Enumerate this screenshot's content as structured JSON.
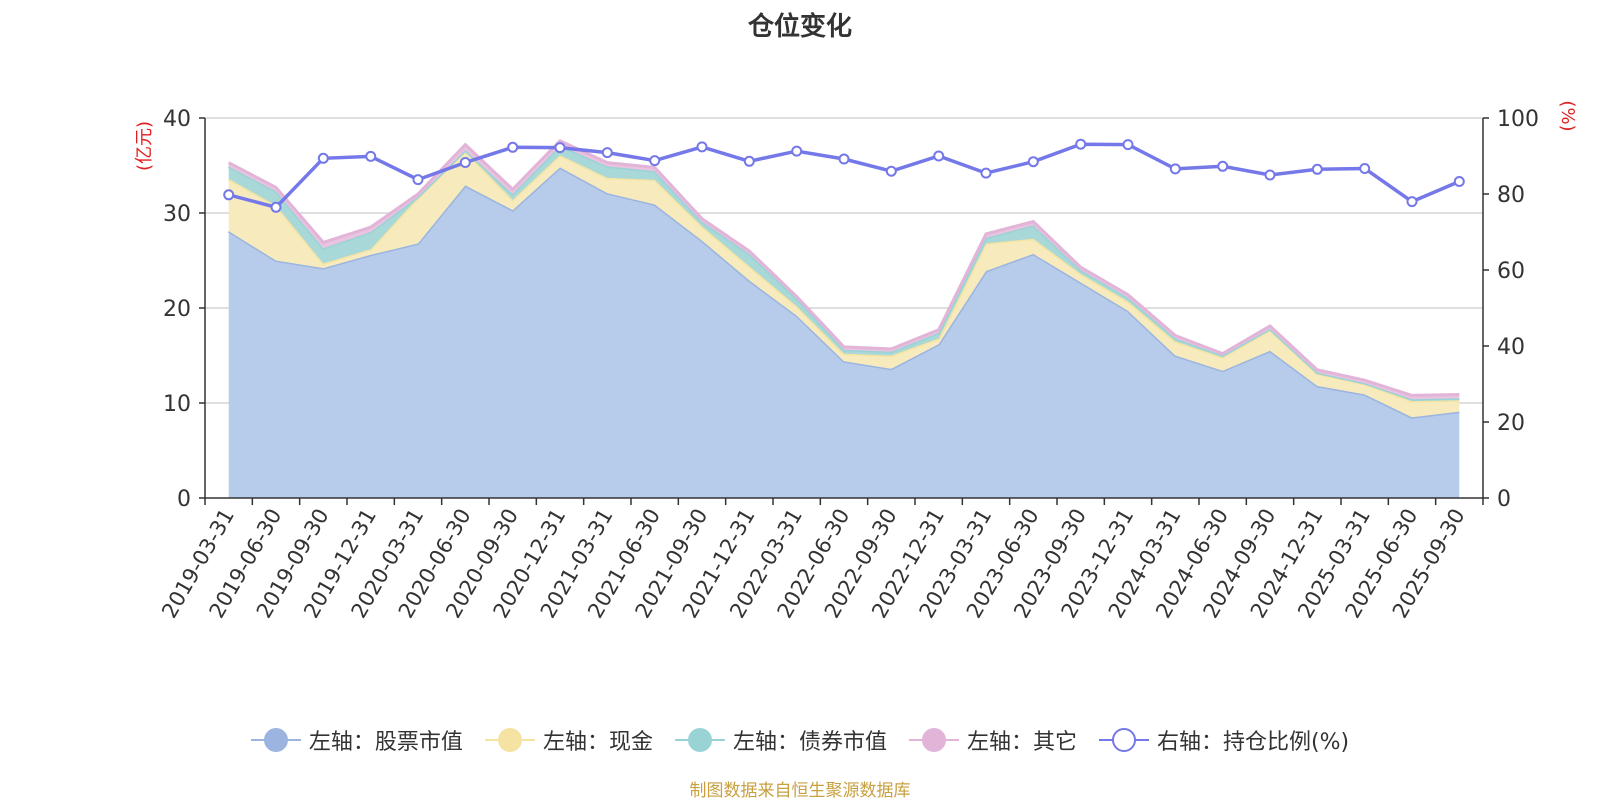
{
  "chart_data": {
    "type": "area",
    "title": "仓位变化",
    "source": "制图数据来自恒生聚源数据库",
    "left_axis": {
      "label": "亿元",
      "label_display": "(亿元)",
      "min": 0,
      "max": 40,
      "ticks": [
        0,
        10,
        20,
        30,
        40
      ]
    },
    "right_axis": {
      "label": "%",
      "label_display": "(%)",
      "min": 0,
      "max": 100,
      "ticks": [
        0,
        20,
        40,
        60,
        80,
        100
      ]
    },
    "categories": [
      "2019-03-31",
      "2019-06-30",
      "2019-09-30",
      "2019-12-31",
      "2020-03-31",
      "2020-06-30",
      "2020-09-30",
      "2020-12-31",
      "2021-03-31",
      "2021-06-30",
      "2021-09-30",
      "2021-12-31",
      "2022-03-31",
      "2022-06-30",
      "2022-09-30",
      "2022-12-31",
      "2023-03-31",
      "2023-06-30",
      "2023-09-30",
      "2023-12-31",
      "2024-03-31",
      "2024-06-30",
      "2024-09-30",
      "2024-12-31",
      "2025-03-31",
      "2025-06-30",
      "2025-09-30"
    ],
    "stacked_series": [
      {
        "name": "左轴：股票市值",
        "axis": "left",
        "color": "#9bb5e0",
        "fill": "#b7cbea",
        "values": [
          28.1,
          25.0,
          24.2,
          25.6,
          26.8,
          32.9,
          30.3,
          34.8,
          32.1,
          30.9,
          27.1,
          22.9,
          19.2,
          14.4,
          13.6,
          16.2,
          23.9,
          25.7,
          22.7,
          19.7,
          15.0,
          13.4,
          15.5,
          11.8,
          10.9,
          8.5,
          9.1
        ]
      },
      {
        "name": "左轴：现金",
        "axis": "left",
        "color": "#f5e3a3",
        "fill": "#f7ebbd",
        "values": [
          5.5,
          5.8,
          0.5,
          0.6,
          4.8,
          3.6,
          1.1,
          1.3,
          1.6,
          2.6,
          1.5,
          1.5,
          1.0,
          0.8,
          1.4,
          0.6,
          2.9,
          1.6,
          0.9,
          1.0,
          1.5,
          1.4,
          2.2,
          1.3,
          1.1,
          1.7,
          1.2
        ]
      },
      {
        "name": "左轴：债券市值",
        "axis": "left",
        "color": "#9ad3d6",
        "fill": "#a8d8d7",
        "values": [
          1.3,
          1.5,
          1.6,
          1.8,
          0.1,
          0.1,
          0.6,
          1.0,
          1.2,
          0.9,
          0.5,
          1.3,
          0.8,
          0.4,
          0.4,
          0.6,
          0.6,
          1.4,
          0.4,
          0.4,
          0.3,
          0.2,
          0.1,
          0.1,
          0.1,
          0.2,
          0.2
        ]
      },
      {
        "name": "左轴：其它",
        "axis": "left",
        "color": "#e2b4d8",
        "fill": "#e9c3e0",
        "values": [
          0.4,
          0.4,
          0.6,
          0.5,
          0.3,
          0.6,
          0.5,
          0.5,
          0.4,
          0.4,
          0.3,
          0.3,
          0.2,
          0.3,
          0.3,
          0.3,
          0.4,
          0.4,
          0.3,
          0.3,
          0.3,
          0.2,
          0.3,
          0.3,
          0.3,
          0.4,
          0.4
        ]
      }
    ],
    "line_series": {
      "name": "右轴：持仓比例(%)",
      "axis": "right",
      "color": "#7478e8",
      "values": [
        79.8,
        76.5,
        89.4,
        89.9,
        83.8,
        88.3,
        92.3,
        92.2,
        90.9,
        88.8,
        92.4,
        88.6,
        91.3,
        89.2,
        86.0,
        90.0,
        85.5,
        88.5,
        93.1,
        93.0,
        86.6,
        87.3,
        85.0,
        86.5,
        86.7,
        78.0,
        83.3
      ]
    },
    "legend_position": "bottom",
    "grid": "horizontal"
  }
}
